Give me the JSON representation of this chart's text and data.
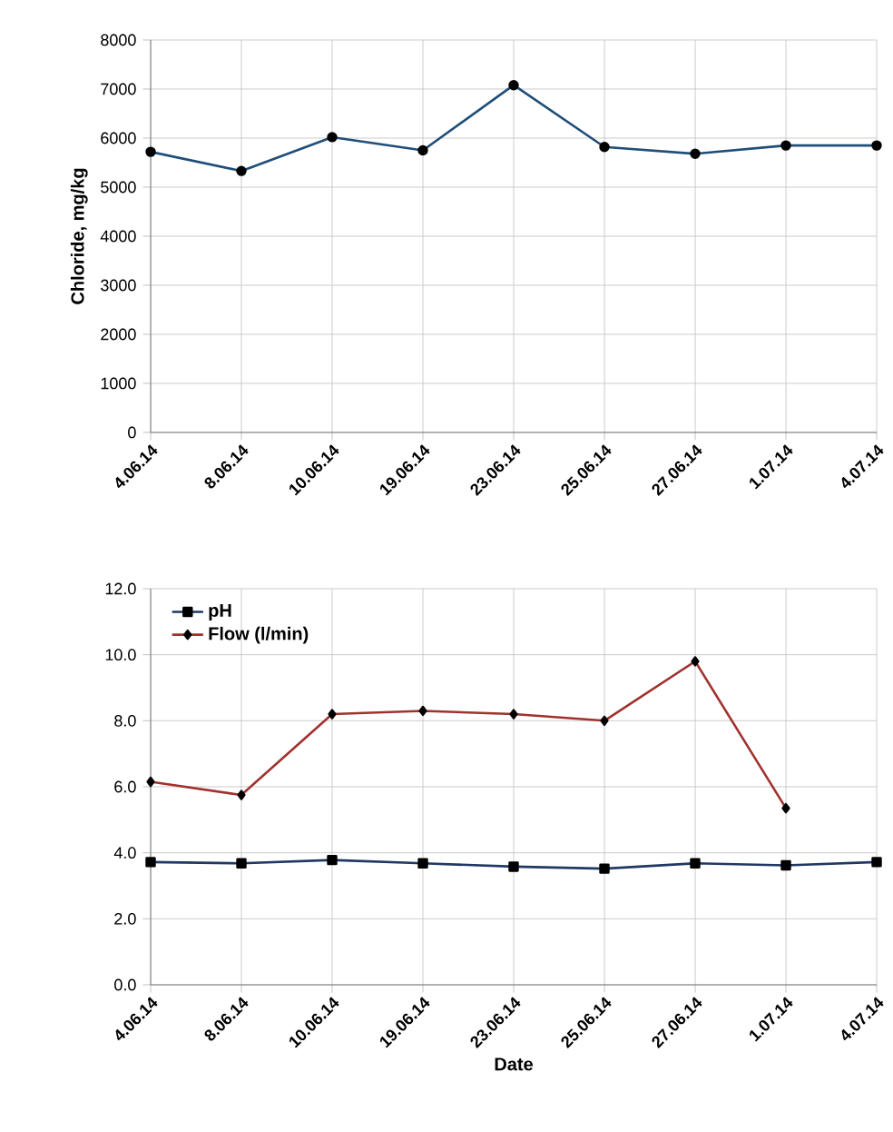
{
  "chart_data": [
    {
      "type": "line",
      "ylabel": "Chloride, mg/kg",
      "categories": [
        "4.06.14",
        "8.06.14",
        "10.06.14",
        "19.06.14",
        "23.06.14",
        "25.06.14",
        "27.06.14",
        "1.07.14",
        "4.07.14"
      ],
      "series": [
        {
          "color": "#1f4e79",
          "values": [
            5720,
            5330,
            6020,
            5750,
            7080,
            5820,
            5680,
            5850,
            5850
          ]
        }
      ],
      "ylim": [
        0,
        8000
      ],
      "yticks": [
        0,
        1000,
        2000,
        3000,
        4000,
        5000,
        6000,
        7000,
        8000
      ],
      "grid": true,
      "marker": "circle",
      "legend": false
    },
    {
      "type": "line",
      "xlabel": "Date",
      "categories": [
        "4.06.14",
        "8.06.14",
        "10.06.14",
        "19.06.14",
        "23.06.14",
        "25.06.14",
        "27.06.14",
        "1.07.14",
        "4.07.14"
      ],
      "series": [
        {
          "name": "pH",
          "color": "#1f3864",
          "marker": "square",
          "values": [
            3.72,
            3.68,
            3.78,
            3.68,
            3.58,
            3.52,
            3.68,
            3.62,
            3.72
          ]
        },
        {
          "name": "Flow (l/min)",
          "color": "#a0322e",
          "marker": "diamond",
          "values": [
            6.15,
            5.75,
            8.2,
            8.3,
            8.2,
            8.0,
            9.8,
            5.35,
            null
          ]
        }
      ],
      "ylim": [
        0,
        12
      ],
      "yticks": [
        {
          "value": 0,
          "label": "0.0"
        },
        {
          "value": 2,
          "label": "2.0"
        },
        {
          "value": 4,
          "label": "4.0"
        },
        {
          "value": 6,
          "label": "6.0"
        },
        {
          "value": 8,
          "label": "8.0"
        },
        {
          "value": 10,
          "label": "10.0"
        },
        {
          "value": 12,
          "label": "12.0"
        }
      ],
      "grid": true,
      "legend": "top left"
    }
  ]
}
